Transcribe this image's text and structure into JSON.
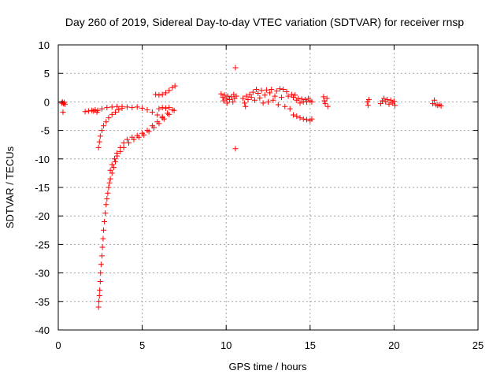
{
  "chart_data": {
    "type": "scatter",
    "title": "Day 260 of 2019, Sidereal Day-to-day VTEC variation (SDTVAR) for receiver rnsp",
    "xlabel": "GPS time / hours",
    "ylabel": "SDTVAR / TECUs",
    "xlim": [
      0,
      25
    ],
    "ylim": [
      -40,
      10
    ],
    "xticks": [
      0,
      5,
      10,
      15,
      20,
      25
    ],
    "xtick_labels": [
      "0",
      "5",
      "10",
      "15",
      "20",
      "25"
    ],
    "yticks": [
      -40,
      -35,
      -30,
      -25,
      -20,
      -15,
      -10,
      -5,
      0,
      5,
      10
    ],
    "ytick_labels": [
      "-40",
      "-35",
      "-30",
      "-25",
      "-20",
      "-15",
      "-10",
      "-5",
      "0",
      "5",
      "10"
    ],
    "grid": true,
    "marker": "+",
    "color": "#ff0000",
    "series": [
      {
        "name": "SDTVAR",
        "points": [
          [
            0.2,
            -0.2
          ],
          [
            0.25,
            0.0
          ],
          [
            0.3,
            -0.3
          ],
          [
            0.35,
            -0.1
          ],
          [
            0.4,
            -0.4
          ],
          [
            0.28,
            -1.8
          ],
          [
            1.6,
            -1.7
          ],
          [
            1.8,
            -1.6
          ],
          [
            2.0,
            -1.5
          ],
          [
            2.1,
            -1.6
          ],
          [
            2.2,
            -1.4
          ],
          [
            2.3,
            -1.8
          ],
          [
            2.35,
            -1.5
          ],
          [
            2.4,
            -36.0
          ],
          [
            2.42,
            -35.0
          ],
          [
            2.45,
            -34.0
          ],
          [
            2.47,
            -33.0
          ],
          [
            2.5,
            -31.5
          ],
          [
            2.52,
            -30.0
          ],
          [
            2.55,
            -28.5
          ],
          [
            2.6,
            -27.0
          ],
          [
            2.63,
            -25.5
          ],
          [
            2.67,
            -24.0
          ],
          [
            2.7,
            -22.5
          ],
          [
            2.75,
            -21.0
          ],
          [
            2.8,
            -19.5
          ],
          [
            2.85,
            -18.0
          ],
          [
            2.9,
            -17.0
          ],
          [
            2.95,
            -16.0
          ],
          [
            3.0,
            -15.0
          ],
          [
            3.05,
            -14.2
          ],
          [
            3.1,
            -13.5
          ],
          [
            3.2,
            -12.5
          ],
          [
            3.3,
            -11.5
          ],
          [
            3.4,
            -10.5
          ],
          [
            3.5,
            -9.5
          ],
          [
            3.7,
            -8.7
          ],
          [
            3.9,
            -8.0
          ],
          [
            4.2,
            -7.2
          ],
          [
            4.5,
            -6.6
          ],
          [
            4.8,
            -6.2
          ],
          [
            5.1,
            -5.8
          ],
          [
            5.4,
            -5.2
          ],
          [
            5.7,
            -4.5
          ],
          [
            6.0,
            -3.8
          ],
          [
            6.3,
            -3.0
          ],
          [
            6.6,
            -2.2
          ],
          [
            6.9,
            -1.5
          ],
          [
            3.1,
            -12.0
          ],
          [
            3.2,
            -11.0
          ],
          [
            3.35,
            -10.0
          ],
          [
            3.5,
            -9.0
          ],
          [
            3.7,
            -8.0
          ],
          [
            3.9,
            -7.2
          ],
          [
            4.1,
            -6.6
          ],
          [
            4.4,
            -6.2
          ],
          [
            4.7,
            -5.9
          ],
          [
            5.0,
            -5.5
          ],
          [
            5.3,
            -5.0
          ],
          [
            5.6,
            -4.2
          ],
          [
            5.9,
            -3.5
          ],
          [
            6.2,
            -2.8
          ],
          [
            6.5,
            -2.0
          ],
          [
            6.8,
            -1.4
          ],
          [
            2.4,
            -8.0
          ],
          [
            2.45,
            -7.0
          ],
          [
            2.5,
            -6.0
          ],
          [
            2.6,
            -5.0
          ],
          [
            2.7,
            -4.2
          ],
          [
            2.85,
            -3.5
          ],
          [
            3.0,
            -2.8
          ],
          [
            3.2,
            -2.2
          ],
          [
            3.4,
            -1.8
          ],
          [
            3.6,
            -1.4
          ],
          [
            3.8,
            -1.1
          ],
          [
            2.6,
            -1.2
          ],
          [
            2.9,
            -1.0
          ],
          [
            3.2,
            -0.9
          ],
          [
            3.5,
            -0.8
          ],
          [
            3.8,
            -0.8
          ],
          [
            4.1,
            -0.9
          ],
          [
            4.4,
            -1.0
          ],
          [
            4.7,
            -0.9
          ],
          [
            5.0,
            -1.1
          ],
          [
            5.3,
            -1.4
          ],
          [
            5.6,
            -1.8
          ],
          [
            5.9,
            -2.3
          ],
          [
            6.2,
            -2.6
          ],
          [
            5.8,
            1.3
          ],
          [
            6.0,
            1.2
          ],
          [
            6.2,
            1.3
          ],
          [
            6.4,
            1.6
          ],
          [
            6.6,
            2.0
          ],
          [
            6.8,
            2.5
          ],
          [
            6.95,
            2.8
          ],
          [
            6.0,
            -1.2
          ],
          [
            6.2,
            -1.0
          ],
          [
            6.4,
            -1.1
          ],
          [
            6.6,
            -1.0
          ],
          [
            9.7,
            1.4
          ],
          [
            9.8,
            0.8
          ],
          [
            9.85,
            0.2
          ],
          [
            9.9,
            1.2
          ],
          [
            10.0,
            0.5
          ],
          [
            10.05,
            -0.2
          ],
          [
            10.1,
            1.0
          ],
          [
            10.2,
            0.4
          ],
          [
            10.3,
            0.9
          ],
          [
            10.4,
            0.0
          ],
          [
            10.45,
            1.3
          ],
          [
            10.5,
            0.6
          ],
          [
            10.6,
            1.0
          ],
          [
            10.55,
            6.0
          ],
          [
            10.55,
            -8.2
          ],
          [
            11.0,
            0.6
          ],
          [
            11.1,
            -0.2
          ],
          [
            11.15,
            -0.8
          ],
          [
            11.2,
            1.0
          ],
          [
            11.3,
            0.4
          ],
          [
            11.4,
            1.3
          ],
          [
            11.5,
            0.8
          ],
          [
            11.6,
            1.7
          ],
          [
            11.7,
            0.3
          ],
          [
            11.8,
            2.2
          ],
          [
            11.9,
            1.5
          ],
          [
            12.0,
            0.7
          ],
          [
            12.1,
            2.0
          ],
          [
            12.2,
            -0.2
          ],
          [
            12.3,
            1.2
          ],
          [
            12.4,
            2.1
          ],
          [
            12.5,
            0.0
          ],
          [
            12.6,
            1.6
          ],
          [
            12.7,
            2.2
          ],
          [
            12.8,
            0.3
          ],
          [
            12.9,
            1.0
          ],
          [
            13.0,
            1.9
          ],
          [
            13.1,
            -0.5
          ],
          [
            13.2,
            2.3
          ],
          [
            13.3,
            0.8
          ],
          [
            13.4,
            2.2
          ],
          [
            13.5,
            -0.8
          ],
          [
            13.6,
            1.8
          ],
          [
            13.7,
            1.0
          ],
          [
            13.8,
            -1.2
          ],
          [
            13.9,
            1.3
          ],
          [
            14.0,
            0.8
          ],
          [
            14.1,
            1.2
          ],
          [
            14.2,
            0.3
          ],
          [
            14.3,
            0.6
          ],
          [
            14.4,
            -0.2
          ],
          [
            14.5,
            0.5
          ],
          [
            14.6,
            0.0
          ],
          [
            14.7,
            0.4
          ],
          [
            14.8,
            0.0
          ],
          [
            14.9,
            0.6
          ],
          [
            15.0,
            0.2
          ],
          [
            15.1,
            0.0
          ],
          [
            14.0,
            -2.3
          ],
          [
            14.2,
            -2.5
          ],
          [
            14.4,
            -2.8
          ],
          [
            14.6,
            -3.0
          ],
          [
            14.8,
            -3.1
          ],
          [
            15.0,
            -3.3
          ],
          [
            15.1,
            -3.0
          ],
          [
            15.8,
            0.9
          ],
          [
            15.85,
            0.2
          ],
          [
            15.9,
            -0.3
          ],
          [
            16.0,
            0.6
          ],
          [
            16.05,
            -0.8
          ],
          [
            18.4,
            0.0
          ],
          [
            18.45,
            -0.6
          ],
          [
            18.5,
            0.4
          ],
          [
            19.2,
            -0.3
          ],
          [
            19.3,
            0.2
          ],
          [
            19.4,
            0.6
          ],
          [
            19.5,
            0.0
          ],
          [
            19.6,
            0.4
          ],
          [
            19.7,
            -0.4
          ],
          [
            19.8,
            0.3
          ],
          [
            19.9,
            -0.2
          ],
          [
            20.0,
            0.1
          ],
          [
            20.05,
            -0.6
          ],
          [
            22.3,
            -0.3
          ],
          [
            22.4,
            0.3
          ],
          [
            22.5,
            -0.5
          ],
          [
            22.6,
            -0.6
          ],
          [
            22.7,
            -0.5
          ],
          [
            22.8,
            -0.7
          ]
        ]
      }
    ]
  }
}
